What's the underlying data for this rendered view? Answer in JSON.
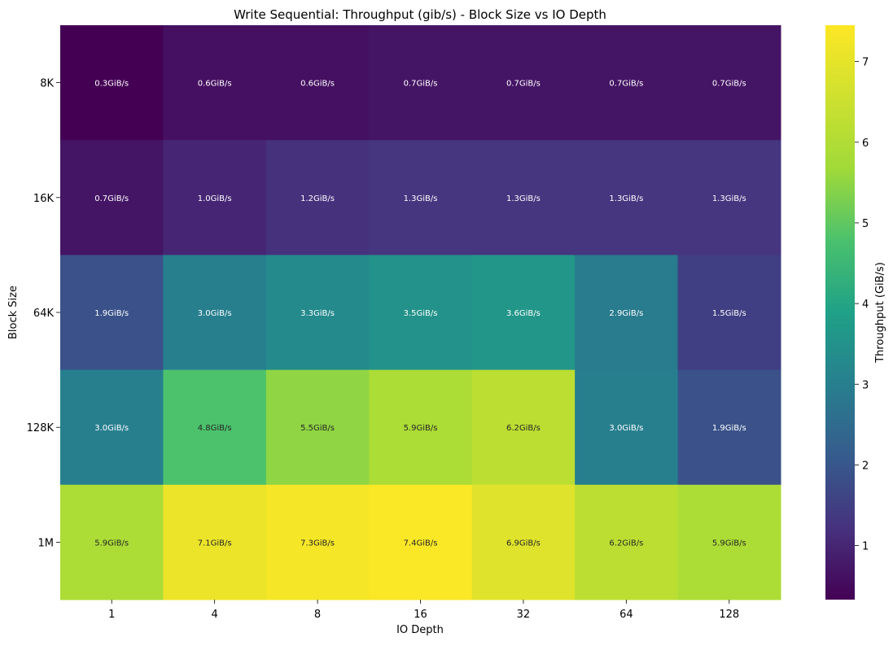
{
  "chart_data": {
    "type": "heatmap",
    "title": "Write Sequential: Throughput (gib/s) - Block Size vs IO Depth",
    "xlabel": "IO Depth",
    "ylabel": "Block Size",
    "x_categories": [
      "1",
      "4",
      "8",
      "16",
      "32",
      "64",
      "128"
    ],
    "y_categories": [
      "8K",
      "16K",
      "64K",
      "128K",
      "1M"
    ],
    "values": [
      [
        0.3,
        0.6,
        0.6,
        0.7,
        0.7,
        0.7,
        0.7
      ],
      [
        0.7,
        1.0,
        1.2,
        1.3,
        1.3,
        1.3,
        1.3
      ],
      [
        1.9,
        3.0,
        3.3,
        3.5,
        3.6,
        2.9,
        1.5
      ],
      [
        3.0,
        4.8,
        5.5,
        5.9,
        6.2,
        3.0,
        1.9
      ],
      [
        5.9,
        7.1,
        7.3,
        7.4,
        6.9,
        6.2,
        5.9
      ]
    ],
    "cell_labels": [
      [
        "0.3GiB/s",
        "0.6GiB/s",
        "0.6GiB/s",
        "0.7GiB/s",
        "0.7GiB/s",
        "0.7GiB/s",
        "0.7GiB/s"
      ],
      [
        "0.7GiB/s",
        "1.0GiB/s",
        "1.2GiB/s",
        "1.3GiB/s",
        "1.3GiB/s",
        "1.3GiB/s",
        "1.3GiB/s"
      ],
      [
        "1.9GiB/s",
        "3.0GiB/s",
        "3.3GiB/s",
        "3.5GiB/s",
        "3.6GiB/s",
        "2.9GiB/s",
        "1.5GiB/s"
      ],
      [
        "3.0GiB/s",
        "4.8GiB/s",
        "5.5GiB/s",
        "5.9GiB/s",
        "6.2GiB/s",
        "3.0GiB/s",
        "1.9GiB/s"
      ],
      [
        "5.9GiB/s",
        "7.1GiB/s",
        "7.3GiB/s",
        "7.4GiB/s",
        "6.9GiB/s",
        "6.2GiB/s",
        "5.9GiB/s"
      ]
    ],
    "colormap": "viridis",
    "colorbar": {
      "label": "Throughput (GiB/s)",
      "range": [
        0.33,
        7.45
      ],
      "ticks": [
        1,
        2,
        3,
        4,
        5,
        6,
        7
      ]
    }
  }
}
